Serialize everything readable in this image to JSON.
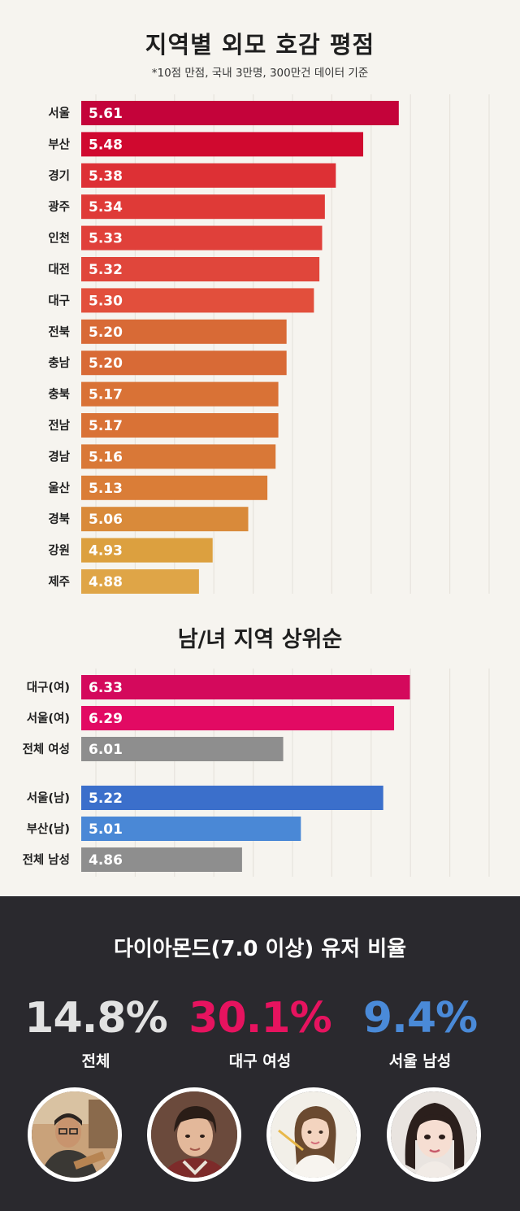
{
  "chart_data": [
    {
      "type": "bar",
      "orientation": "horizontal",
      "title": "지역별 외모 호감 평점",
      "subtitle": "*10점 만점, 국내 3만명, 300만건 데이터 기준",
      "categories": [
        "서울",
        "부산",
        "경기",
        "광주",
        "인천",
        "대전",
        "대구",
        "전북",
        "충남",
        "충북",
        "전남",
        "경남",
        "울산",
        "경북",
        "강원",
        "제주"
      ],
      "values": [
        5.61,
        5.48,
        5.38,
        5.34,
        5.33,
        5.32,
        5.3,
        5.2,
        5.2,
        5.17,
        5.17,
        5.16,
        5.13,
        5.06,
        4.93,
        4.88
      ],
      "value_labels": [
        "5.61",
        "5.48",
        "5.38",
        "5.34",
        "5.33",
        "5.32",
        "5.30",
        "5.20",
        "5.20",
        "5.17",
        "5.17",
        "5.16",
        "5.13",
        "5.06",
        "4.93",
        "4.88"
      ],
      "colors": [
        "#c4033a",
        "#d0092f",
        "#dd3035",
        "#df3a37",
        "#e0403a",
        "#e0463b",
        "#e24f3c",
        "#d86a36",
        "#d86a36",
        "#d97236",
        "#d97236",
        "#d97837",
        "#da7d37",
        "#d98a3a",
        "#dca03f",
        "#dfa547"
      ],
      "axis_range": [
        4.45,
        5.94
      ]
    },
    {
      "type": "bar",
      "orientation": "horizontal",
      "title": "남/녀 지역 상위순",
      "groups": [
        {
          "categories": [
            "대구(여)",
            "서울(여)",
            "전체 여성"
          ],
          "values": [
            6.33,
            6.29,
            6.01
          ],
          "value_labels": [
            "6.33",
            "6.29",
            "6.01"
          ],
          "colors": [
            "#d4095c",
            "#e20a63",
            "#8e8e8e"
          ]
        },
        {
          "categories": [
            "서울(남)",
            "부산(남)",
            "전체 남성"
          ],
          "values": [
            5.22,
            5.01,
            4.86
          ],
          "value_labels": [
            "5.22",
            "5.01",
            "4.86"
          ],
          "colors": [
            "#3b6fcb",
            "#4a88d6",
            "#8e8e8e"
          ]
        }
      ],
      "female_axis_range": [
        5.5,
        6.53
      ],
      "male_axis_range": [
        4.45,
        5.49
      ]
    }
  ],
  "diamond": {
    "title": "다이아몬드(7.0 이상) 유저 비율",
    "stats": [
      {
        "value": "14.8%",
        "label": "전체",
        "color": "#e2e2e2"
      },
      {
        "value": "30.1%",
        "label": "대구 여성",
        "color": "#e6135f"
      },
      {
        "value": "9.4%",
        "label": "서울 남성",
        "color": "#4a8ad8"
      }
    ]
  }
}
